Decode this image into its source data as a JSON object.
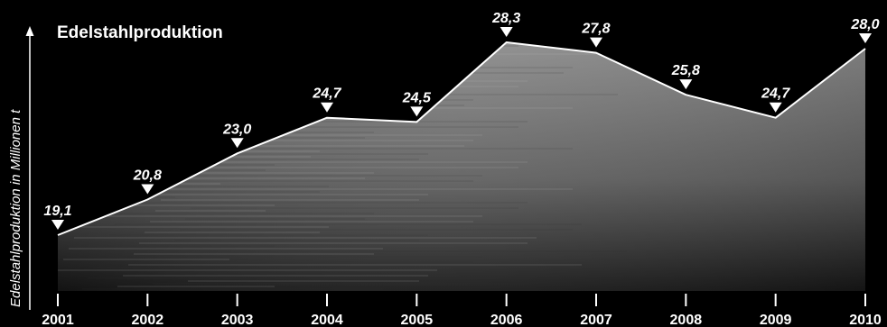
{
  "chart_data": {
    "type": "area",
    "title": "Edelstahlproduktion",
    "xlabel": "",
    "ylabel": "Edelstahlproduktion in Millionen t",
    "categories": [
      "2001",
      "2002",
      "2003",
      "2004",
      "2005",
      "2006",
      "2007",
      "2008",
      "2009",
      "2010"
    ],
    "values": [
      19.1,
      20.8,
      23.0,
      24.7,
      24.5,
      28.3,
      27.8,
      25.8,
      24.7,
      28.0
    ],
    "value_labels": [
      "19,1",
      "20,8",
      "23,0",
      "24,7",
      "24,5",
      "28,3",
      "27,8",
      "25,8",
      "24,7",
      "28,0"
    ],
    "grid": false,
    "legend": "none",
    "colors": {
      "background": "#000000",
      "fill_top": "#8c8c8c",
      "fill_bottom": "#1a1a1a",
      "line": "#ffffff",
      "text": "#ffffff"
    }
  }
}
